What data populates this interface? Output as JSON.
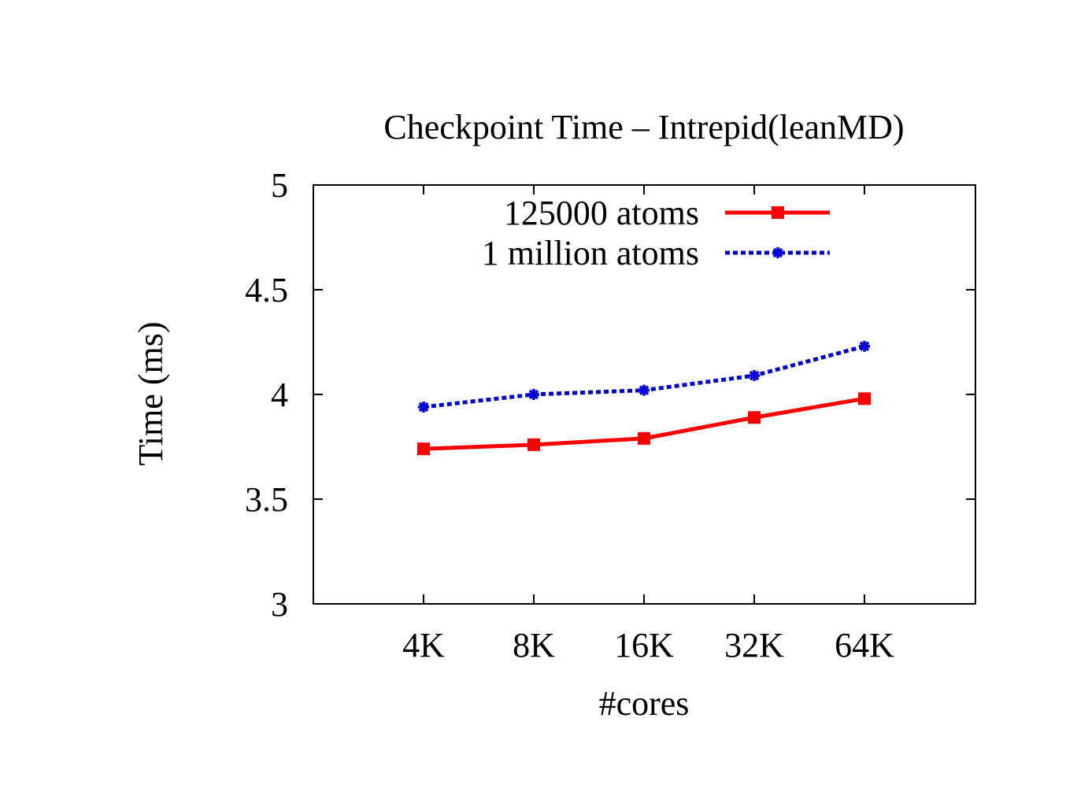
{
  "chart_data": {
    "type": "line",
    "title": "Checkpoint Time – Intrepid(leanMD)",
    "xlabel": "#cores",
    "ylabel": "Time (ms)",
    "categories": [
      "4K",
      "8K",
      "16K",
      "32K",
      "64K"
    ],
    "ylim": [
      3,
      5
    ],
    "yticks": [
      "3",
      "3.5",
      "4",
      "4.5",
      "5"
    ],
    "grid": false,
    "legend_position": "top-right",
    "series": [
      {
        "name": "125000 atoms",
        "values": [
          3.74,
          3.76,
          3.79,
          3.89,
          3.98
        ],
        "color": "#ff0000",
        "line_style": "solid",
        "marker": "square"
      },
      {
        "name": "1 million atoms",
        "values": [
          3.94,
          4.0,
          4.02,
          4.09,
          4.23
        ],
        "color": "#0000dd",
        "line_style": "dotted",
        "marker": "star"
      }
    ]
  }
}
